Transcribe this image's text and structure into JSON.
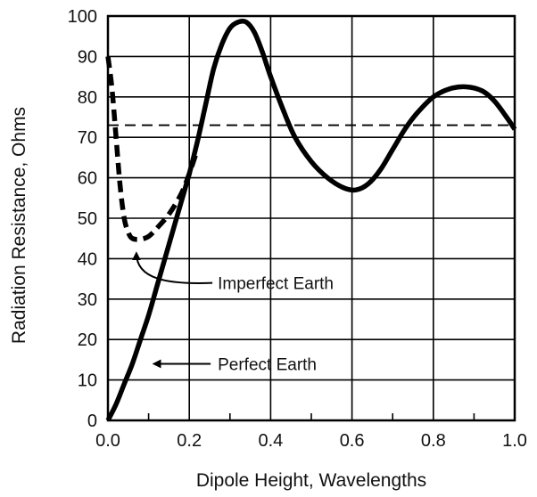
{
  "chart_data": {
    "type": "line",
    "title": "",
    "xlabel": "Dipole Height, Wavelengths",
    "ylabel": "Radiation Resistance, Ohms",
    "xlim": [
      0,
      1.0
    ],
    "ylim": [
      0,
      100
    ],
    "grid": true,
    "x_ticks": [
      "0.0",
      "0.2",
      "0.4",
      "0.6",
      "0.8",
      "1.0"
    ],
    "y_ticks": [
      "0",
      "10",
      "20",
      "30",
      "40",
      "50",
      "60",
      "70",
      "80",
      "90",
      "100"
    ],
    "series": [
      {
        "name": "Perfect Earth",
        "style": "solid",
        "color": "#000000",
        "points": [
          [
            0.0,
            0
          ],
          [
            0.02,
            4
          ],
          [
            0.04,
            9
          ],
          [
            0.06,
            14
          ],
          [
            0.08,
            20
          ],
          [
            0.1,
            26
          ],
          [
            0.12,
            33
          ],
          [
            0.14,
            40
          ],
          [
            0.16,
            47
          ],
          [
            0.18,
            54
          ],
          [
            0.2,
            61
          ],
          [
            0.22,
            69
          ],
          [
            0.24,
            78
          ],
          [
            0.26,
            87
          ],
          [
            0.28,
            93
          ],
          [
            0.3,
            97
          ],
          [
            0.32,
            98.5
          ],
          [
            0.34,
            98.5
          ],
          [
            0.36,
            96
          ],
          [
            0.38,
            91
          ],
          [
            0.4,
            85
          ],
          [
            0.43,
            77
          ],
          [
            0.46,
            70
          ],
          [
            0.5,
            64
          ],
          [
            0.54,
            60
          ],
          [
            0.58,
            57.5
          ],
          [
            0.61,
            57
          ],
          [
            0.64,
            58.5
          ],
          [
            0.67,
            62
          ],
          [
            0.7,
            67
          ],
          [
            0.73,
            72
          ],
          [
            0.76,
            76
          ],
          [
            0.8,
            80
          ],
          [
            0.84,
            82
          ],
          [
            0.88,
            82.5
          ],
          [
            0.92,
            81.5
          ],
          [
            0.95,
            79
          ],
          [
            0.98,
            75
          ],
          [
            1.0,
            72
          ]
        ]
      },
      {
        "name": "Imperfect Earth",
        "style": "dashed",
        "color": "#000000",
        "points": [
          [
            0.0,
            90
          ],
          [
            0.01,
            82
          ],
          [
            0.02,
            70
          ],
          [
            0.03,
            58
          ],
          [
            0.04,
            50
          ],
          [
            0.05,
            46.5
          ],
          [
            0.06,
            45
          ],
          [
            0.08,
            44.8
          ],
          [
            0.1,
            45.5
          ],
          [
            0.12,
            47.5
          ],
          [
            0.15,
            51
          ],
          [
            0.18,
            56
          ],
          [
            0.2,
            61
          ],
          [
            0.22,
            67
          ]
        ]
      },
      {
        "name": "",
        "style": "dashed",
        "color": "#000000",
        "points": [
          [
            0.0,
            73
          ],
          [
            1.0,
            73
          ]
        ]
      }
    ],
    "annotations": [
      {
        "text": "Imperfect Earth",
        "target": [
          0.07,
          44
        ],
        "text_at": [
          0.27,
          34
        ]
      },
      {
        "text": "Perfect Earth",
        "target": [
          0.1,
          15
        ],
        "text_at": [
          0.27,
          14
        ]
      }
    ]
  }
}
